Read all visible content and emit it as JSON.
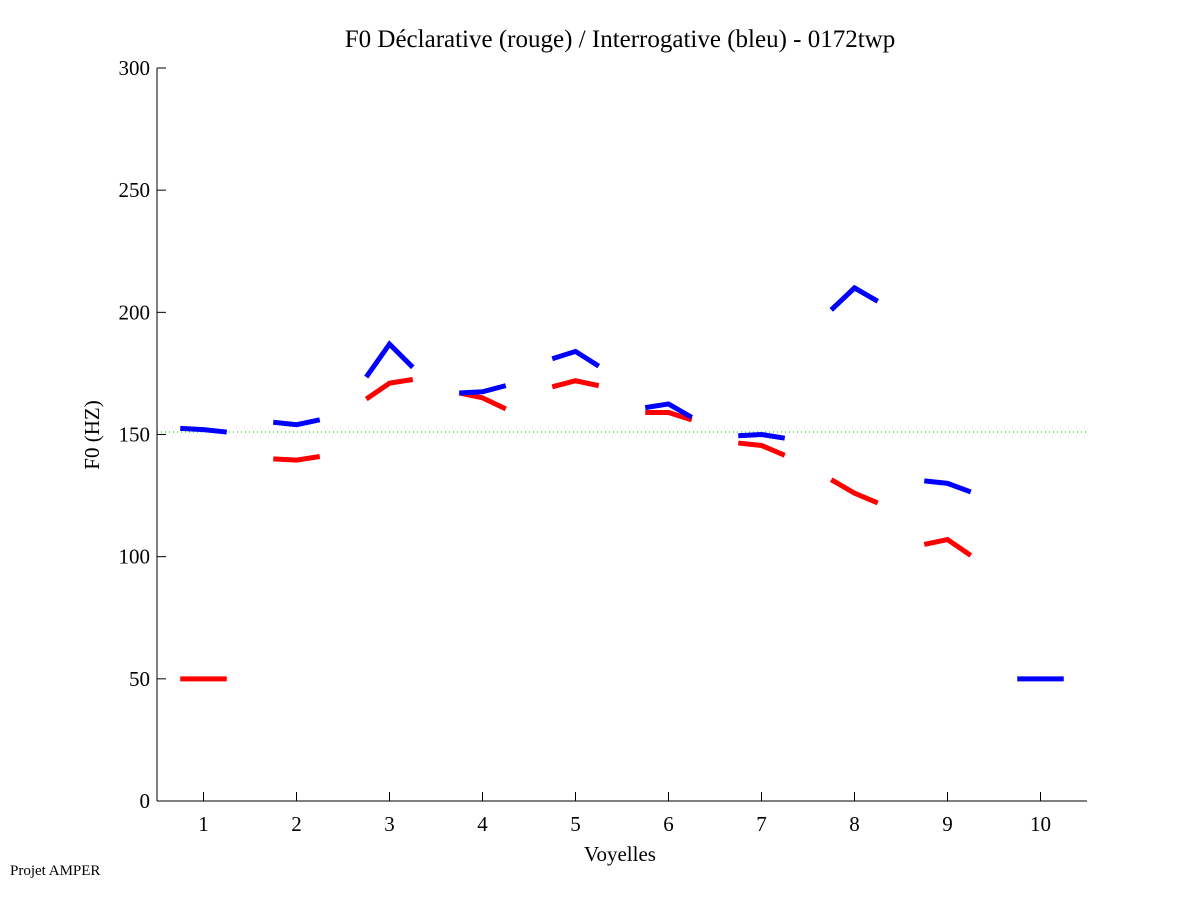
{
  "footer": "Projet AMPER",
  "chart_data": {
    "type": "line",
    "title": "F0 Déclarative (rouge) / Interrogative (bleu) - 0172twp",
    "xlabel": "Voyelles",
    "ylabel": "F0 (HZ)",
    "xlim": [
      0.5,
      10.5
    ],
    "ylim": [
      0,
      300
    ],
    "xticks": [
      1,
      2,
      3,
      4,
      5,
      6,
      7,
      8,
      9,
      10
    ],
    "yticks": [
      0,
      50,
      100,
      150,
      200,
      250,
      300
    ],
    "grid": false,
    "legend": "none (colors described in title)",
    "reference_line": {
      "y": 151,
      "color": "#00c000",
      "style": "dotted"
    },
    "segment_offsets": [
      -0.25,
      0,
      0.25
    ],
    "series": [
      {
        "name": "Déclarative (rouge)",
        "color": "#ff0000",
        "segments": [
          {
            "vowel": 1,
            "values": [
              50,
              50,
              50
            ]
          },
          {
            "vowel": 2,
            "values": [
              140,
              139.5,
              141
            ]
          },
          {
            "vowel": 3,
            "values": [
              164.5,
              171,
              172.5
            ]
          },
          {
            "vowel": 4,
            "values": [
              167,
              165,
              160.5
            ]
          },
          {
            "vowel": 5,
            "values": [
              169.5,
              172,
              170
            ]
          },
          {
            "vowel": 6,
            "values": [
              159,
              159,
              156
            ]
          },
          {
            "vowel": 7,
            "values": [
              146.5,
              145.5,
              141.5
            ]
          },
          {
            "vowel": 8,
            "values": [
              131.5,
              126,
              122
            ]
          },
          {
            "vowel": 9,
            "values": [
              105,
              107,
              100.5
            ]
          }
        ]
      },
      {
        "name": "Interrogative (bleu)",
        "color": "#0000ff",
        "segments": [
          {
            "vowel": 1,
            "values": [
              152.5,
              152,
              151
            ]
          },
          {
            "vowel": 2,
            "values": [
              155,
              154,
              156
            ]
          },
          {
            "vowel": 3,
            "values": [
              173.5,
              187,
              177.5
            ]
          },
          {
            "vowel": 4,
            "values": [
              167,
              167.5,
              170
            ]
          },
          {
            "vowel": 5,
            "values": [
              181,
              184,
              178
            ]
          },
          {
            "vowel": 6,
            "values": [
              161,
              162.5,
              157
            ]
          },
          {
            "vowel": 7,
            "values": [
              149.5,
              150,
              148.5
            ]
          },
          {
            "vowel": 8,
            "values": [
              201,
              210,
              204.5
            ]
          },
          {
            "vowel": 9,
            "values": [
              131,
              130,
              126.5
            ]
          },
          {
            "vowel": 10,
            "values": [
              50,
              50,
              50
            ]
          }
        ]
      }
    ]
  }
}
